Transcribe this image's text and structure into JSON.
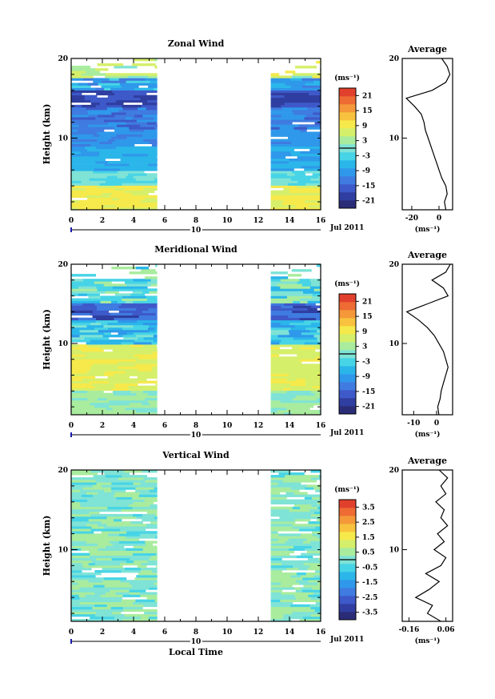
{
  "colors": {
    "scale": [
      "#2a2c78",
      "#2f3ea0",
      "#3e59c9",
      "#3f7be0",
      "#2f98ea",
      "#2bb6ea",
      "#47d4e6",
      "#7fe3d6",
      "#a9ec9e",
      "#d5ef6a",
      "#f6e94b",
      "#f8c23e",
      "#f4983a",
      "#ee6b34",
      "#e1402d"
    ]
  },
  "chart_data": [
    {
      "type": "heatmap",
      "title": "Zonal Wind",
      "ylabel": "Height (km)",
      "xticks": [
        "0",
        "2",
        "4",
        "6",
        "8",
        "10",
        "12",
        "14",
        "16"
      ],
      "yticks": [
        "10",
        "20"
      ],
      "xlim": [
        0,
        16
      ],
      "ylim": [
        1,
        20
      ],
      "data_gap": [
        5.5,
        12.8
      ],
      "date_tick": "10",
      "date_label": "Jul 2011",
      "colorbar": {
        "unit": "(ms⁻¹)",
        "ticks": [
          "21",
          "15",
          "9",
          "3",
          "-3",
          "-9",
          "-15",
          "-21"
        ],
        "range": [
          -24,
          24
        ]
      },
      "profile": {
        "title": "Average",
        "xticks": [
          "-20",
          "0"
        ],
        "xlabel": "(ms⁻¹)",
        "xlim": [
          -27,
          10
        ],
        "heights": [
          1,
          2,
          3,
          4,
          5,
          6,
          7,
          8,
          9,
          10,
          11,
          12,
          13,
          14,
          15,
          16,
          17,
          18,
          19,
          20
        ],
        "values": [
          5,
          4,
          6,
          5,
          2,
          0,
          -2,
          -4,
          -6,
          -8,
          -10,
          -11,
          -13,
          -18,
          -24,
          -5,
          5,
          8,
          6,
          2
        ]
      }
    },
    {
      "type": "heatmap",
      "title": "Meridional Wind",
      "ylabel": "Height (km)",
      "xticks": [
        "0",
        "2",
        "4",
        "6",
        "8",
        "10",
        "12",
        "14",
        "16"
      ],
      "yticks": [
        "10",
        "20"
      ],
      "xlim": [
        0,
        16
      ],
      "ylim": [
        1,
        20
      ],
      "data_gap": [
        5.5,
        12.8
      ],
      "date_tick": "10",
      "date_label": "Jul 2011",
      "colorbar": {
        "unit": "(ms⁻¹)",
        "ticks": [
          "21",
          "15",
          "9",
          "3",
          "-3",
          "-9",
          "-15",
          "-21"
        ],
        "range": [
          -24,
          24
        ]
      },
      "profile": {
        "title": "Average",
        "xticks": [
          "-10",
          "0"
        ],
        "xlabel": "(ms⁻¹)",
        "xlim": [
          -15,
          7
        ],
        "heights": [
          1,
          2,
          3,
          4,
          5,
          6,
          7,
          8,
          9,
          10,
          11,
          12,
          13,
          14,
          15,
          16,
          17,
          18,
          19,
          20
        ],
        "values": [
          1,
          0.5,
          1.5,
          2,
          3,
          4,
          5,
          4,
          3,
          1,
          -1,
          -4,
          -8,
          -13,
          -4,
          5,
          3,
          -2,
          4,
          6
        ]
      }
    },
    {
      "type": "heatmap",
      "title": "Vertical Wind",
      "ylabel": "Height (km)",
      "xlabel": "Local Time",
      "xticks": [
        "0",
        "2",
        "4",
        "6",
        "8",
        "10",
        "12",
        "14",
        "16"
      ],
      "yticks": [
        "10",
        "20"
      ],
      "xlim": [
        0,
        16
      ],
      "ylim": [
        1,
        20
      ],
      "data_gap": [
        5.5,
        12.8
      ],
      "date_tick": "10",
      "date_label": "Jul 2011",
      "colorbar": {
        "unit": "(ms⁻¹)",
        "ticks": [
          "3.5",
          "2.5",
          "1.5",
          "0.5",
          "-0.5",
          "-1.5",
          "-2.5",
          "-3.5"
        ],
        "range": [
          -4,
          4
        ]
      },
      "profile": {
        "title": "Average",
        "xticks": [
          "-0.16",
          "0.06"
        ],
        "xlabel": "(ms⁻¹)",
        "xlim": [
          -0.2,
          0.1
        ],
        "heights": [
          1,
          2,
          3,
          4,
          5,
          6,
          7,
          8,
          9,
          10,
          11,
          12,
          13,
          14,
          15,
          16,
          17,
          18,
          19,
          20
        ],
        "values": [
          0.03,
          -0.05,
          -0.02,
          -0.12,
          -0.04,
          0.02,
          -0.06,
          0.03,
          0.06,
          -0.01,
          0.05,
          0.01,
          0.07,
          0.03,
          0.05,
          0.0,
          0.06,
          0.03,
          0.07,
          0.02
        ]
      }
    }
  ]
}
